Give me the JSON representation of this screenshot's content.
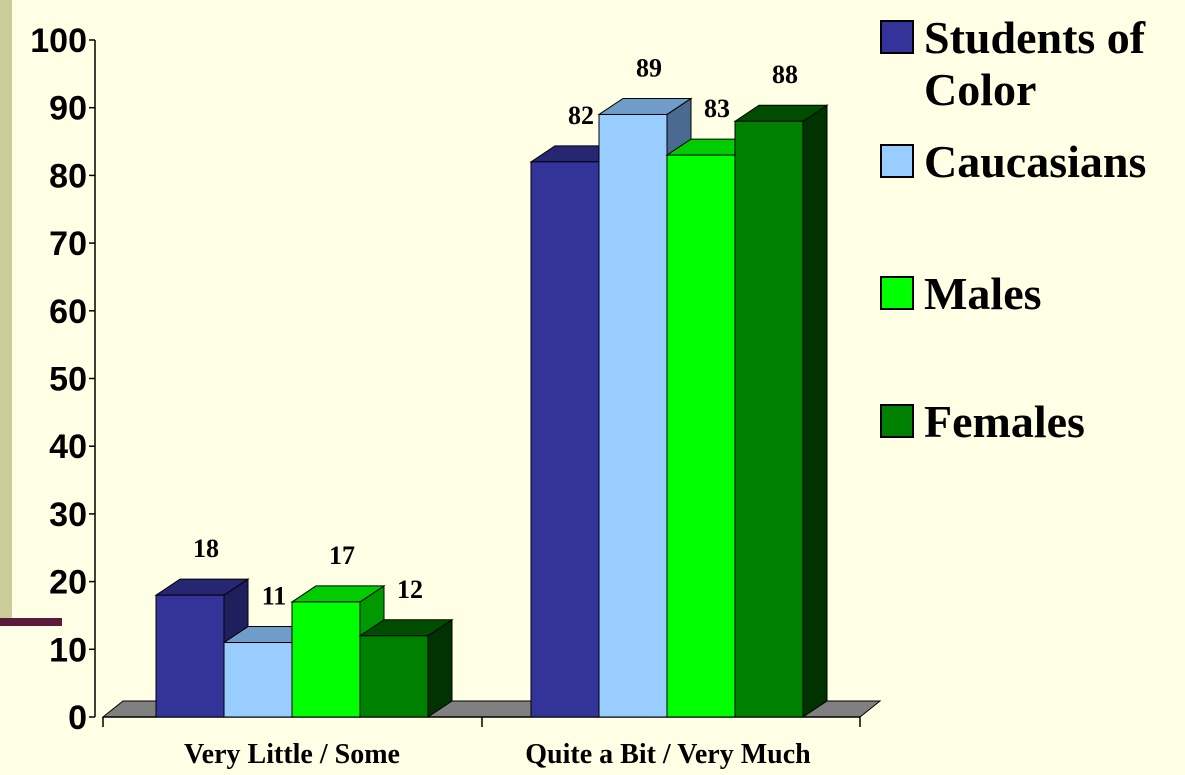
{
  "page": {
    "background": "#FFFFE5",
    "side_bar_color": "#CCCC99",
    "side_accent_color": "#5A1A3C"
  },
  "chart_data": {
    "type": "bar",
    "style": "3d-clustered-column",
    "categories": [
      "Very Little / Some",
      "Quite a Bit / Very Much"
    ],
    "series": [
      {
        "name": "Students of\nColor",
        "values": [
          18,
          82
        ],
        "color": "#333399",
        "side_color": "#1F1F5E",
        "top_color": "#262673"
      },
      {
        "name": "Caucasians",
        "values": [
          11,
          89
        ],
        "color": "#99CCFF",
        "side_color": "#4A6A90",
        "top_color": "#6F9CC8"
      },
      {
        "name": "Males",
        "values": [
          17,
          83
        ],
        "color": "#00FF00",
        "side_color": "#009900",
        "top_color": "#00CC00"
      },
      {
        "name": "Females",
        "values": [
          12,
          88
        ],
        "color": "#008000",
        "side_color": "#003300",
        "top_color": "#004D00"
      }
    ],
    "data_labels": [
      [
        "18",
        "82"
      ],
      [
        "11",
        "89"
      ],
      [
        "17",
        "83"
      ],
      [
        "12",
        "88"
      ]
    ],
    "y_ticks": [
      "0",
      "10",
      "20",
      "30",
      "40",
      "50",
      "60",
      "70",
      "80",
      "90",
      "100"
    ],
    "ylim": [
      0,
      100
    ],
    "title": "",
    "xlabel": "",
    "ylabel": "",
    "grid": false,
    "legend": "right",
    "floor_color": "#808080"
  }
}
